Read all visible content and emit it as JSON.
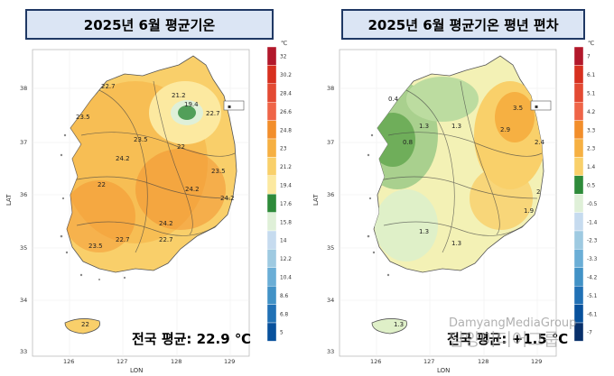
{
  "left": {
    "title": "2025년 6월 평균기온",
    "avg_label": "전국 평균: 22.9 ℃",
    "unit": "℃",
    "xlabel": "LON",
    "ylabel": "LAT",
    "legend_values": [
      "32",
      "30.2",
      "28.4",
      "26.6",
      "24.8",
      "23",
      "21.2",
      "19.4",
      "17.6",
      "15.8",
      "14",
      "12.2",
      "10.4",
      "8.6",
      "6.8",
      "5"
    ],
    "legend_colors": [
      "#b2182b",
      "#d7301f",
      "#e34a33",
      "#ef6548",
      "#f28e2b",
      "#f6b042",
      "#f9d06a",
      "#fce9a0",
      "#2e8b3a",
      "#dff0d8",
      "#c6dbef",
      "#9ecae1",
      "#6baed6",
      "#4292c6",
      "#2171b5",
      "#08519c"
    ],
    "contour_labels": [
      "22.7",
      "23.5",
      "21.2",
      "19.4",
      "22.7",
      "23.5",
      "22",
      "24.2",
      "23.5",
      "24.2",
      "22",
      "24.2",
      "24.2",
      "22.7",
      "23.5",
      "22.7",
      "22"
    ],
    "legend_box_text": "▪"
  },
  "right": {
    "title": "2025년 6월 평균기온  평년 편차",
    "avg_label": "전국 평균: +1.5 ℃",
    "unit": "℃",
    "xlabel": "LON",
    "ylabel": "LAT",
    "legend_values": [
      "7",
      "6.1",
      "5.1",
      "4.2",
      "3.3",
      "2.3",
      "1.4",
      "0.5",
      "-0.5",
      "-1.4",
      "-2.3",
      "-3.3",
      "-4.2",
      "-5.1",
      "-6.1",
      "-7"
    ],
    "legend_colors": [
      "#b2182b",
      "#d7301f",
      "#e34a33",
      "#ef6548",
      "#f28e2b",
      "#f6b042",
      "#f9d06a",
      "#2e8b3a",
      "#dff0d8",
      "#c6dbef",
      "#9ecae1",
      "#6baed6",
      "#4292c6",
      "#2171b5",
      "#08519c",
      "#08306b"
    ],
    "contour_labels": [
      "0.4",
      "1.3",
      "1.3",
      "3.5",
      "2.9",
      "2.4",
      "0.8",
      "2",
      "1.9",
      "1.3",
      "1.3",
      "1.3"
    ],
    "legend_box_text": "▪"
  },
  "axes": {
    "lat_ticks": [
      "38",
      "37",
      "36",
      "35",
      "34",
      "33"
    ],
    "lon_ticks": [
      "126",
      "127",
      "128",
      "129"
    ]
  },
  "watermark": {
    "line1": "DamyangMediaGroup",
    "line2": "담양미디어그룹"
  }
}
